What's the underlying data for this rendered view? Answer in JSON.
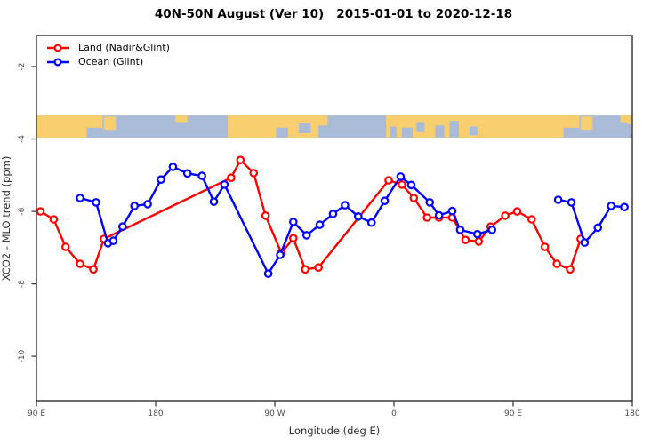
{
  "title": "40N-50N August (Ver 10)   2015-01-01 to 2020-12-18",
  "legend": {
    "items": [
      {
        "label": "Land (Nadir&Glint)",
        "color": "#ff0000"
      },
      {
        "label": "Ocean (Glint)",
        "color": "#0000ff"
      }
    ]
  },
  "axes": {
    "x_label": "Longitude (deg E)",
    "y_label": "XCO2 - MLO trend (ppm)",
    "x_ticks": [
      {
        "pos": 90,
        "label": "90 E"
      },
      {
        "pos": 180,
        "label": "180"
      },
      {
        "pos": 270,
        "label": "90 W"
      },
      {
        "pos": 360,
        "label": "0"
      },
      {
        "pos": 450,
        "label": "90 E"
      },
      {
        "pos": 540,
        "label": "180"
      }
    ],
    "y_ticks": [
      {
        "pos": -2,
        "label": "-2"
      },
      {
        "pos": -4,
        "label": "-4"
      },
      {
        "pos": -6,
        "label": "-6"
      },
      {
        "pos": -8,
        "label": "-8"
      },
      {
        "pos": -10,
        "label": "-10"
      }
    ],
    "x_range": [
      90,
      540
    ],
    "y_range": [
      -11.25,
      -1.14
    ]
  },
  "chart_data": {
    "type": "line",
    "title": "40N-50N August (Ver 10) 2015-01-01 to 2020-12-18",
    "xlabel": "Longitude (deg E)",
    "ylabel": "XCO2 - MLO trend (ppm)",
    "xlim": [
      90,
      540
    ],
    "ylim": [
      -11.25,
      -1.14
    ],
    "axis_note": "x axis spans 450 deg: 90E east across the dateline to 180; 90E-180E data is drawn at both ends",
    "series": [
      {
        "name": "Land (Nadir&Glint)",
        "color": "#ff0000",
        "marker": "open-circle",
        "segments": [
          [
            [
              93,
              -6.0
            ],
            [
              103,
              -6.22
            ],
            [
              112,
              -6.98
            ],
            [
              123,
              -7.45
            ],
            [
              133,
              -7.6
            ],
            [
              141,
              -6.76
            ],
            [
              237,
              -5.07
            ],
            [
              244,
              -4.58
            ],
            [
              254,
              -4.94
            ],
            [
              263,
              -6.12
            ],
            [
              275,
              -7.15
            ],
            [
              284,
              -6.74
            ],
            [
              293,
              -7.6
            ],
            [
              303,
              -7.55
            ],
            [
              356,
              -5.14
            ],
            [
              366,
              -5.26
            ],
            [
              375,
              -5.63
            ],
            [
              385,
              -6.17
            ],
            [
              394,
              -6.17
            ],
            [
              404,
              -6.17
            ],
            [
              414,
              -6.79
            ],
            [
              424,
              -6.83
            ],
            [
              433,
              -6.42
            ],
            [
              444,
              -6.12
            ],
            [
              453,
              -6.0
            ],
            [
              464,
              -6.22
            ],
            [
              474,
              -6.98
            ],
            [
              483,
              -7.45
            ],
            [
              493,
              -7.6
            ],
            [
              501,
              -6.76
            ]
          ]
        ]
      },
      {
        "name": "Ocean (Glint)",
        "color": "#0000ff",
        "marker": "open-circle",
        "segments": [
          [
            [
              123,
              -5.63
            ],
            [
              135,
              -5.75
            ],
            [
              144,
              -6.88
            ],
            [
              148,
              -6.81
            ],
            [
              155,
              -6.42
            ],
            [
              164,
              -5.85
            ],
            [
              174,
              -5.8
            ],
            [
              184,
              -5.12
            ],
            [
              193,
              -4.77
            ],
            [
              204,
              -4.95
            ],
            [
              215,
              -5.02
            ],
            [
              224,
              -5.73
            ],
            [
              232,
              -5.26
            ],
            [
              265,
              -7.72
            ],
            [
              274,
              -7.2
            ],
            [
              284,
              -6.29
            ],
            [
              294,
              -6.66
            ],
            [
              304,
              -6.37
            ],
            [
              314,
              -6.07
            ],
            [
              323,
              -5.83
            ],
            [
              333,
              -6.14
            ],
            [
              343,
              -6.31
            ],
            [
              353,
              -5.71
            ],
            [
              365,
              -5.04
            ],
            [
              373,
              -5.27
            ],
            [
              387,
              -5.75
            ],
            [
              394,
              -6.11
            ],
            [
              404,
              -5.99
            ],
            [
              410,
              -6.51
            ],
            [
              423,
              -6.63
            ],
            [
              434,
              -6.51
            ]
          ],
          [
            [
              484,
              -5.68
            ],
            [
              494,
              -5.75
            ],
            [
              504,
              -6.86
            ],
            [
              514,
              -6.45
            ],
            [
              524,
              -5.85
            ],
            [
              534,
              -5.88
            ]
          ]
        ]
      }
    ],
    "map_band": {
      "note": "world-map strip of the 40N-50N latitude band drawn across the plot",
      "value_range": [
        -3.96,
        -3.35
      ],
      "land_color": "#f8ce6e",
      "ocean_color": "#a9bbd6",
      "land": [
        [
          90,
          128,
          0,
          1
        ],
        [
          128,
          140,
          0,
          0.55
        ],
        [
          141,
          150,
          0.05,
          0.65
        ],
        [
          195,
          204,
          0,
          0.3
        ],
        [
          234.5,
          303,
          0,
          1
        ],
        [
          303,
          310,
          0,
          0.45
        ],
        [
          354,
          488,
          0,
          1
        ],
        [
          488,
          500,
          0,
          0.55
        ],
        [
          501,
          510,
          0.05,
          0.65
        ],
        [
          531,
          536,
          0,
          0.3
        ],
        [
          536,
          540,
          0,
          0.4
        ]
      ],
      "ocean_patches": [
        [
          271,
          280,
          0.55,
          1
        ],
        [
          288,
          297,
          0.35,
          0.8
        ],
        [
          357,
          362,
          0.5,
          1
        ],
        [
          366,
          374,
          0.55,
          1
        ],
        [
          377,
          383,
          0.3,
          0.75
        ],
        [
          391,
          398,
          0.45,
          1
        ],
        [
          402,
          409,
          0.25,
          1
        ],
        [
          417,
          423,
          0.5,
          0.9
        ]
      ]
    }
  }
}
